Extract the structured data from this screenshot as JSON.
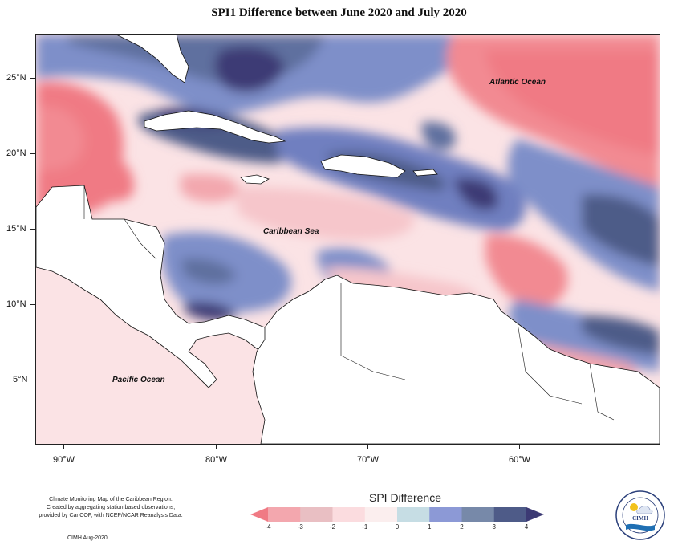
{
  "title": "SPI1 Difference between June 2020 and July 2020",
  "map": {
    "labels": {
      "atlantic": "Atlantic Ocean",
      "caribbean": "Caribbean Sea",
      "pacific": "Pacific Ocean"
    },
    "lat_ticks": [
      "25°N",
      "20°N",
      "15°N",
      "10°N",
      "5°N"
    ],
    "lon_ticks": [
      "90°W",
      "80°W",
      "70°W",
      "60°W"
    ]
  },
  "legend": {
    "title": "SPI Difference",
    "ticks": [
      "-4",
      "-3",
      "-2",
      "-1",
      "0",
      "1",
      "2",
      "3",
      "4"
    ],
    "colors": [
      "#f07a84",
      "#f3a7ae",
      "#e9bfc3",
      "#fbdcdf",
      "#fbeeee",
      "#c6dde4",
      "#8c99d6",
      "#7789a9",
      "#4e5b88",
      "#3c3a74"
    ]
  },
  "footer": {
    "lines": [
      "Climate Monitoring Map of the Caribbean Region.",
      "Created by aggregating station based observations,",
      "provided by CariCOF, with NCEP/NCAR Reanalysis Data."
    ],
    "date": "CIMH Aug-2020"
  },
  "logo": {
    "text": "CIMH"
  }
}
